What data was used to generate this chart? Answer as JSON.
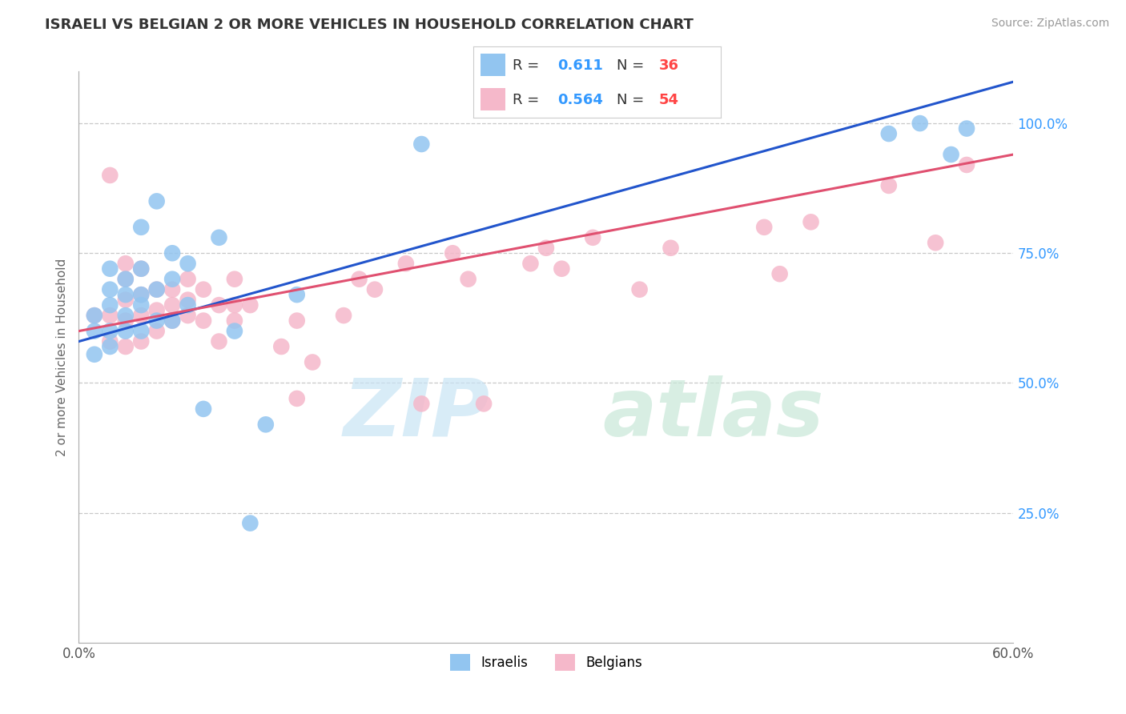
{
  "title": "ISRAELI VS BELGIAN 2 OR MORE VEHICLES IN HOUSEHOLD CORRELATION CHART",
  "source": "Source: ZipAtlas.com",
  "ylabel": "2 or more Vehicles in Household",
  "xlim": [
    0.0,
    0.6
  ],
  "ylim": [
    0.0,
    1.1
  ],
  "xticks": [
    0.0,
    0.1,
    0.2,
    0.3,
    0.4,
    0.5,
    0.6
  ],
  "xticklabels": [
    "0.0%",
    "",
    "",
    "",
    "",
    "",
    "60.0%"
  ],
  "yticks": [
    0.25,
    0.5,
    0.75,
    1.0
  ],
  "yticklabels": [
    "25.0%",
    "50.0%",
    "75.0%",
    "100.0%"
  ],
  "grid_color": "#c8c8c8",
  "legend_R_israeli": "0.611",
  "legend_N_israeli": "36",
  "legend_R_belgian": "0.564",
  "legend_N_belgian": "54",
  "israeli_color": "#92C5F0",
  "belgian_color": "#F5B8CA",
  "israeli_line_color": "#2255CC",
  "belgian_line_color": "#E05070",
  "israeli_x": [
    0.01,
    0.01,
    0.01,
    0.02,
    0.02,
    0.02,
    0.02,
    0.02,
    0.03,
    0.03,
    0.03,
    0.03,
    0.04,
    0.04,
    0.04,
    0.04,
    0.04,
    0.05,
    0.05,
    0.05,
    0.06,
    0.06,
    0.06,
    0.07,
    0.07,
    0.08,
    0.09,
    0.1,
    0.11,
    0.12,
    0.14,
    0.22,
    0.52,
    0.54,
    0.56,
    0.57
  ],
  "israeli_y": [
    0.555,
    0.6,
    0.63,
    0.57,
    0.6,
    0.65,
    0.68,
    0.72,
    0.6,
    0.63,
    0.67,
    0.7,
    0.6,
    0.65,
    0.67,
    0.72,
    0.8,
    0.62,
    0.68,
    0.85,
    0.62,
    0.7,
    0.75,
    0.65,
    0.73,
    0.45,
    0.78,
    0.6,
    0.23,
    0.42,
    0.67,
    0.96,
    0.98,
    1.0,
    0.94,
    0.99
  ],
  "belgian_x": [
    0.01,
    0.02,
    0.02,
    0.02,
    0.03,
    0.03,
    0.03,
    0.03,
    0.03,
    0.04,
    0.04,
    0.04,
    0.04,
    0.05,
    0.05,
    0.05,
    0.06,
    0.06,
    0.06,
    0.07,
    0.07,
    0.07,
    0.08,
    0.08,
    0.09,
    0.09,
    0.1,
    0.1,
    0.1,
    0.11,
    0.13,
    0.14,
    0.14,
    0.15,
    0.17,
    0.18,
    0.19,
    0.21,
    0.22,
    0.24,
    0.25,
    0.26,
    0.29,
    0.3,
    0.31,
    0.33,
    0.36,
    0.38,
    0.44,
    0.45,
    0.47,
    0.52,
    0.55,
    0.57
  ],
  "belgian_y": [
    0.63,
    0.58,
    0.63,
    0.9,
    0.57,
    0.62,
    0.66,
    0.7,
    0.73,
    0.58,
    0.63,
    0.67,
    0.72,
    0.6,
    0.64,
    0.68,
    0.62,
    0.65,
    0.68,
    0.63,
    0.66,
    0.7,
    0.62,
    0.68,
    0.58,
    0.65,
    0.62,
    0.65,
    0.7,
    0.65,
    0.57,
    0.47,
    0.62,
    0.54,
    0.63,
    0.7,
    0.68,
    0.73,
    0.46,
    0.75,
    0.7,
    0.46,
    0.73,
    0.76,
    0.72,
    0.78,
    0.68,
    0.76,
    0.8,
    0.71,
    0.81,
    0.88,
    0.77,
    0.92
  ],
  "israeli_line_x0": 0.0,
  "israeli_line_y0": 0.58,
  "israeli_line_x1": 0.6,
  "israeli_line_y1": 1.08,
  "belgian_line_x0": 0.0,
  "belgian_line_y0": 0.6,
  "belgian_line_x1": 0.6,
  "belgian_line_y1": 0.94
}
